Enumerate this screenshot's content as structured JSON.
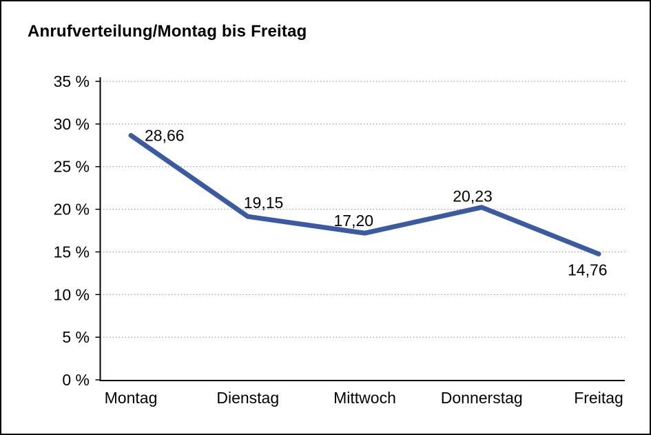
{
  "title": "Anrufverteilung/Montag bis Freitag",
  "chart_data": {
    "type": "line",
    "title": "Anrufverteilung/Montag bis Freitag",
    "categories": [
      "Montag",
      "Dienstag",
      "Mittwoch",
      "Donnerstag",
      "Freitag"
    ],
    "values": [
      28.66,
      19.15,
      17.2,
      20.23,
      14.76
    ],
    "point_labels": [
      "28,66",
      "19,15",
      "17,20",
      "20,23",
      "14,76"
    ],
    "xlabel": "",
    "ylabel": "",
    "ylim": [
      0,
      35
    ],
    "y_tick_step": 5,
    "y_tick_labels": [
      "0 %",
      "5 %",
      "10 %",
      "15 %",
      "20 %",
      "25 %",
      "30 %",
      "35 %"
    ],
    "grid": "horizontal-dotted",
    "legend": "none",
    "series_name": "Anrufverteilung",
    "line_color": "#3A5AA5",
    "line_width": 7
  },
  "colors": {
    "background": "#FFFFFF",
    "border": "#000000",
    "axis": "#000000",
    "grid": "#888888",
    "text": "#000000",
    "line": "#3A5AA5"
  }
}
